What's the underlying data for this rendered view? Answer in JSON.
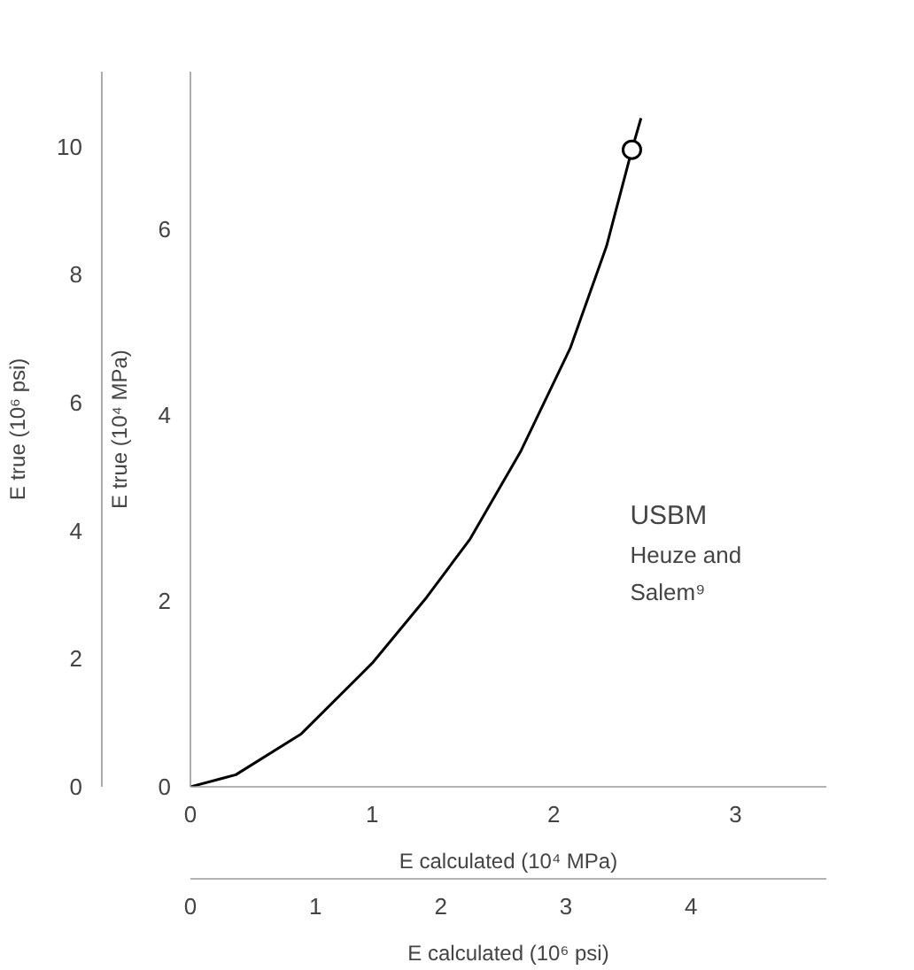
{
  "chart_data": {
    "type": "line",
    "xlabel": "E calculated (10⁴ MPa)",
    "ylabel": "E true (10⁴ MPa)",
    "y2label": "E true (10⁶ psi)",
    "x2label": "E calculated (10⁶ psi)",
    "xlim": [
      0,
      3.5
    ],
    "xticks": [
      0,
      1,
      2,
      3
    ],
    "ylim": [
      0,
      7.7
    ],
    "yticks": [
      0,
      2,
      4,
      6
    ],
    "y2lim": [
      0,
      11.17
    ],
    "y2ticks": [
      0,
      2,
      4,
      6,
      8,
      10
    ],
    "x2lim": [
      0,
      5.08
    ],
    "x2ticks": [
      0,
      1,
      2,
      3,
      4
    ],
    "series": [
      {
        "color": "#000000",
        "marker": "none",
        "x": [
          0,
          0.25,
          0.61,
          1.0,
          1.3,
          1.54,
          1.82,
          2.09,
          2.29,
          2.43,
          2.48
        ],
        "values": [
          0,
          0.13,
          0.57,
          1.33,
          2.04,
          2.67,
          3.62,
          4.72,
          5.82,
          6.86,
          7.2
        ]
      },
      {
        "type": "scatter",
        "color": "#000000",
        "marker": "circle",
        "x": [
          2.43
        ],
        "values": [
          6.86
        ]
      }
    ],
    "annotations": [
      "USBM",
      "Heuze and Salem⁹"
    ],
    "grid": false
  }
}
